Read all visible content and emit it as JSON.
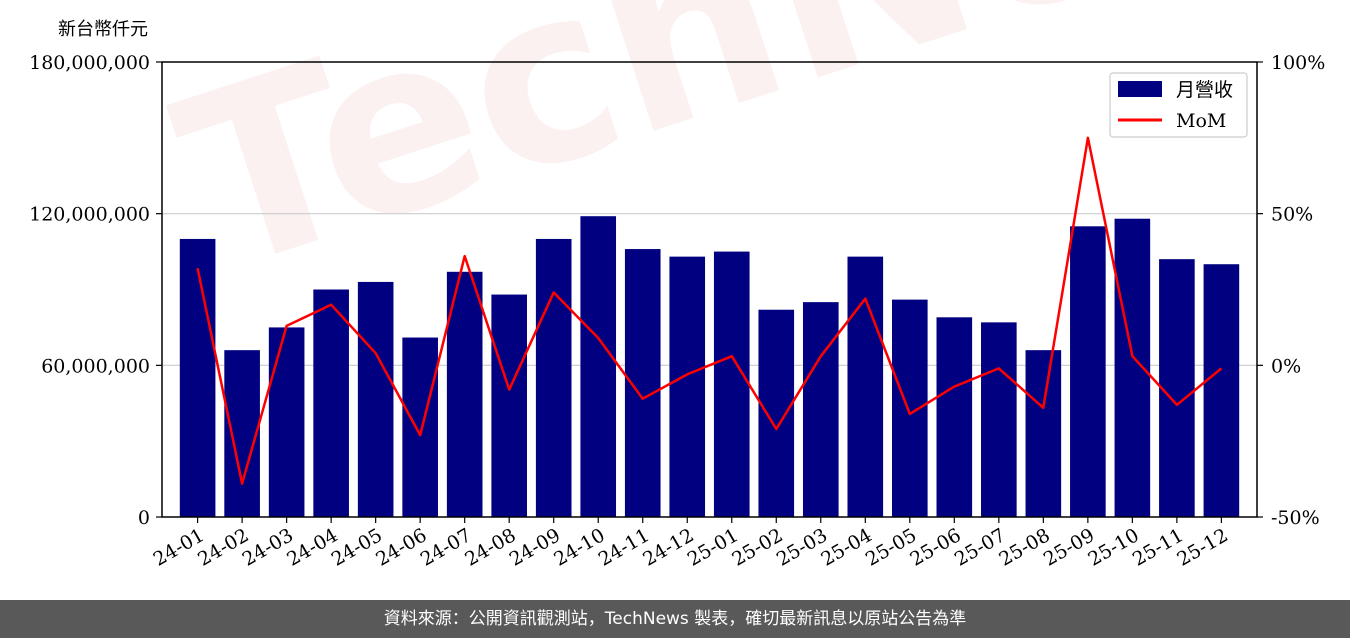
{
  "unit_label": "新台幣仟元",
  "footer": "資料來源：公開資訊觀測站，TechNews 製表，確切最新訊息以原站公告為準",
  "watermark": "TechNews",
  "colors": {
    "bar": "#000080",
    "line": "#ff0000",
    "grid": "#cccccc",
    "footer_bg": "#595959"
  },
  "chart_data": {
    "type": "bar",
    "categories": [
      "24-01",
      "24-02",
      "24-03",
      "24-04",
      "24-05",
      "24-06",
      "24-07",
      "24-08",
      "24-09",
      "24-10",
      "24-11",
      "24-12",
      "25-01",
      "25-02",
      "25-03",
      "25-04",
      "25-05",
      "25-06",
      "25-07",
      "25-08",
      "25-09",
      "25-10",
      "25-11",
      "25-12"
    ],
    "series": [
      {
        "name": "月營收",
        "type": "bar",
        "axis": "left",
        "values": [
          110000000,
          66000000,
          75000000,
          90000000,
          93000000,
          71000000,
          97000000,
          88000000,
          110000000,
          119000000,
          106000000,
          103000000,
          105000000,
          82000000,
          85000000,
          103000000,
          86000000,
          79000000,
          77000000,
          66000000,
          115000000,
          118000000,
          102000000,
          100000000
        ]
      },
      {
        "name": "MoM",
        "type": "line",
        "axis": "right",
        "values": [
          32,
          -39,
          13,
          20,
          4,
          -23,
          36,
          -8,
          24,
          9,
          -11,
          -3,
          3,
          -21,
          3,
          22,
          -16,
          -7,
          -1,
          -14,
          75,
          3,
          -13,
          -1
        ]
      }
    ],
    "yleft": {
      "ylim": [
        0,
        180000000
      ],
      "ticks": [
        "0",
        "60,000,000",
        "120,000,000",
        "180,000,000"
      ],
      "tick_values": [
        0,
        60000000,
        120000000,
        180000000
      ]
    },
    "yright": {
      "ylim": [
        -50,
        100
      ],
      "ticks": [
        "-50%",
        "0%",
        "50%",
        "100%"
      ],
      "tick_values": [
        -50,
        0,
        50,
        100
      ]
    },
    "grid": "horizontal",
    "legend_position": "top-right"
  }
}
